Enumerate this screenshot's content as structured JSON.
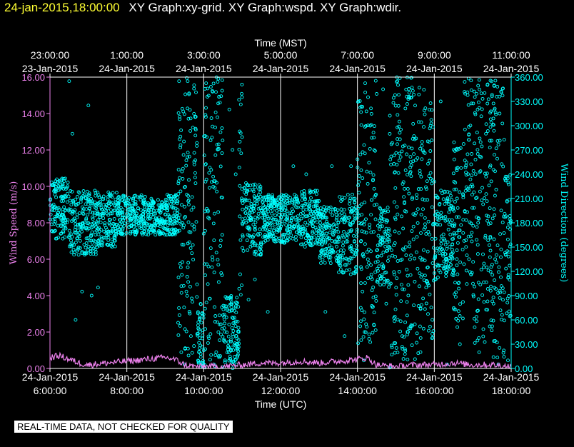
{
  "header": {
    "timestamp": "24-jan-2015,18:00:00",
    "graphs": "XY Graph:xy-grid.  XY Graph:wspd.  XY Graph:wdir."
  },
  "footer": {
    "note": "REAL-TIME DATA, NOT CHECKED FOR QUALITY"
  },
  "colors": {
    "speed": "#ee82ee",
    "direction": "#00ffff",
    "grid": "#ffffff",
    "bg": "#000000",
    "title": "#ffff33"
  },
  "chart_data": {
    "type": "scatter",
    "top_axis": {
      "title": "Time (MST)",
      "ticks": [
        {
          "time": "23:00:00",
          "date": "23-Jan-2015"
        },
        {
          "time": "1:00:00",
          "date": "24-Jan-2015"
        },
        {
          "time": "3:00:00",
          "date": "24-Jan-2015"
        },
        {
          "time": "5:00:00",
          "date": "24-Jan-2015"
        },
        {
          "time": "7:00:00",
          "date": "24-Jan-2015"
        },
        {
          "time": "9:00:00",
          "date": "24-Jan-2015"
        },
        {
          "time": "11:00:00",
          "date": "24-Jan-2015"
        }
      ]
    },
    "bottom_axis": {
      "title": "Time (UTC)",
      "ticks": [
        {
          "date": "24-Jan-2015",
          "time": "6:00:00"
        },
        {
          "date": "24-Jan-2015",
          "time": "8:00:00"
        },
        {
          "date": "24-Jan-2015",
          "time": "10:00:00"
        },
        {
          "date": "24-Jan-2015",
          "time": "12:00:00"
        },
        {
          "date": "24-Jan-2015",
          "time": "14:00:00"
        },
        {
          "date": "24-Jan-2015",
          "time": "16:00:00"
        },
        {
          "date": "24-Jan-2015",
          "time": "18:00:00"
        }
      ],
      "range_utc": [
        "2015-01-24 06:00",
        "2015-01-24 18:00"
      ]
    },
    "left_axis": {
      "title": "Wind Speed (m/s)",
      "ylim": [
        0,
        16
      ],
      "ticks": [
        "0.00",
        "2.00",
        "4.00",
        "6.00",
        "8.00",
        "10.00",
        "12.00",
        "14.00",
        "16.00"
      ]
    },
    "right_axis": {
      "title": "Wind Direction (degrees)",
      "ylim": [
        0,
        360
      ],
      "ticks": [
        "0.00",
        "30.00",
        "60.00",
        "90.00",
        "120.00",
        "150.00",
        "180.00",
        "210.00",
        "240.00",
        "270.00",
        "300.00",
        "330.00",
        "360.00"
      ]
    },
    "grid": "vertical",
    "series": [
      {
        "axis": "left",
        "marker": "line",
        "color": "#ee82ee",
        "points": [
          [
            "06:00",
            0.6
          ],
          [
            "06:15",
            0.7
          ],
          [
            "06:30",
            0.5
          ],
          [
            "06:45",
            0.3
          ],
          [
            "07:00",
            0.2
          ],
          [
            "07:30",
            0.3
          ],
          [
            "08:00",
            0.4
          ],
          [
            "08:30",
            0.5
          ],
          [
            "09:00",
            0.6
          ],
          [
            "09:15",
            0.5
          ],
          [
            "09:30",
            0.2
          ],
          [
            "09:45",
            0.1
          ],
          [
            "10:00",
            0.1
          ],
          [
            "10:30",
            0.1
          ],
          [
            "11:00",
            0.2
          ],
          [
            "11:30",
            0.3
          ],
          [
            "12:00",
            0.3
          ],
          [
            "12:30",
            0.4
          ],
          [
            "13:00",
            0.3
          ],
          [
            "13:30",
            0.4
          ],
          [
            "14:00",
            0.5
          ],
          [
            "14:15",
            0.6
          ],
          [
            "14:30",
            0.2
          ],
          [
            "15:00",
            0.1
          ],
          [
            "15:30",
            0.2
          ],
          [
            "16:00",
            0.2
          ],
          [
            "16:30",
            0.3
          ],
          [
            "17:00",
            0.2
          ],
          [
            "17:30",
            0.2
          ],
          [
            "18:00",
            0.1
          ]
        ]
      },
      {
        "axis": "right",
        "marker": "circle",
        "color": "#00ffff",
        "bands": [
          {
            "from": "06:00",
            "to": "06:30",
            "lo": 160,
            "hi": 235
          },
          {
            "from": "06:30",
            "to": "07:15",
            "lo": 140,
            "hi": 220
          },
          {
            "from": "07:15",
            "to": "07:45",
            "lo": 150,
            "hi": 220
          },
          {
            "from": "07:45",
            "to": "08:30",
            "lo": 165,
            "hi": 215
          },
          {
            "from": "08:30",
            "to": "09:00",
            "lo": 165,
            "hi": 210
          },
          {
            "from": "09:00",
            "to": "09:20",
            "lo": 165,
            "hi": 215
          },
          {
            "from": "09:20",
            "to": "09:50",
            "lo": 10,
            "hi": 360
          },
          {
            "from": "09:50",
            "to": "10:00",
            "lo": 0,
            "hi": 80
          },
          {
            "from": "10:00",
            "to": "10:30",
            "lo": 0,
            "hi": 360
          },
          {
            "from": "10:30",
            "to": "10:55",
            "lo": 0,
            "hi": 90
          },
          {
            "from": "10:55",
            "to": "11:00",
            "lo": 60,
            "hi": 360
          },
          {
            "from": "11:00",
            "to": "11:30",
            "lo": 140,
            "hi": 230
          },
          {
            "from": "11:30",
            "to": "12:30",
            "lo": 155,
            "hi": 215
          },
          {
            "from": "12:30",
            "to": "13:00",
            "lo": 150,
            "hi": 220
          },
          {
            "from": "13:00",
            "to": "13:30",
            "lo": 130,
            "hi": 200
          },
          {
            "from": "13:30",
            "to": "14:00",
            "lo": 115,
            "hi": 215
          },
          {
            "from": "14:00",
            "to": "14:30",
            "lo": 30,
            "hi": 360
          },
          {
            "from": "14:30",
            "to": "14:50",
            "lo": 100,
            "hi": 200
          },
          {
            "from": "14:50",
            "to": "15:00",
            "lo": 0,
            "hi": 360
          },
          {
            "from": "15:00",
            "to": "15:45",
            "lo": 10,
            "hi": 360
          },
          {
            "from": "15:45",
            "to": "16:00",
            "lo": 30,
            "hi": 330
          },
          {
            "from": "16:00",
            "to": "16:30",
            "lo": 110,
            "hi": 220
          },
          {
            "from": "16:30",
            "to": "16:45",
            "lo": 50,
            "hi": 280
          },
          {
            "from": "16:45",
            "to": "17:00",
            "lo": 100,
            "hi": 360
          },
          {
            "from": "17:00",
            "to": "17:30",
            "lo": 30,
            "hi": 360
          },
          {
            "from": "17:30",
            "to": "17:50",
            "lo": 10,
            "hi": 360
          },
          {
            "from": "17:50",
            "to": "18:00",
            "lo": 60,
            "hi": 240
          }
        ],
        "outliers": [
          [
            "06:30",
            355
          ],
          [
            "06:35",
            290
          ],
          [
            "06:40",
            60
          ],
          [
            "06:50",
            95
          ],
          [
            "07:00",
            325
          ],
          [
            "07:05",
            90
          ],
          [
            "07:15",
            100
          ],
          [
            "09:25",
            20
          ],
          [
            "09:30",
            5
          ],
          [
            "09:35",
            355
          ],
          [
            "09:40",
            40
          ],
          [
            "09:45",
            350
          ],
          [
            "10:40",
            320
          ],
          [
            "10:45",
            270
          ],
          [
            "10:50",
            240
          ],
          [
            "11:10",
            85
          ],
          [
            "11:20",
            110
          ],
          [
            "11:40",
            70
          ],
          [
            "12:20",
            250
          ],
          [
            "12:40",
            240
          ],
          [
            "13:10",
            70
          ],
          [
            "13:20",
            250
          ],
          [
            "13:40",
            40
          ],
          [
            "13:50",
            250
          ],
          [
            "14:10",
            10
          ],
          [
            "14:20",
            300
          ],
          [
            "14:40",
            345
          ],
          [
            "14:45",
            80
          ],
          [
            "16:10",
            330
          ],
          [
            "16:20",
            5
          ],
          [
            "16:40",
            30
          ],
          [
            "17:10",
            20
          ],
          [
            "17:40",
            5
          ],
          [
            "17:55",
            10
          ]
        ]
      }
    ]
  }
}
